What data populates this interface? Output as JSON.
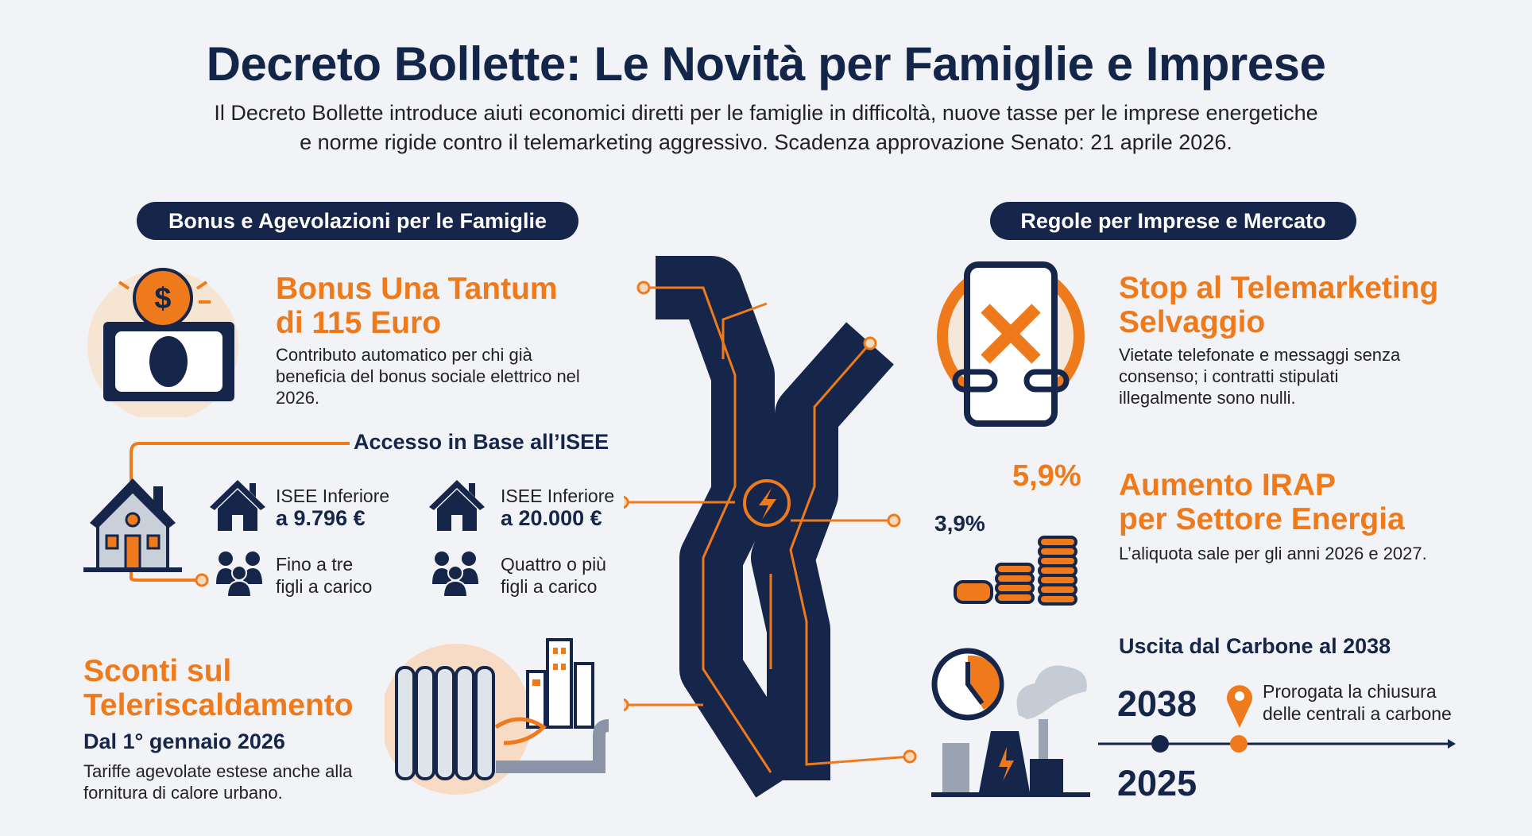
{
  "header": {
    "title": "Decreto Bollette: Le Novità per Famiglie e Imprese",
    "subtitle_line1": "Il Decreto Bollette introduce aiuti economici diretti per le famiglie in difficoltà, nuove tasse per le imprese energetiche",
    "subtitle_line2": "e norme rigide contro il telemarketing aggressivo. Scadenza approvazione Senato: 21 aprile 2026."
  },
  "families": {
    "section_label": "Bonus e Agevolazioni per le Famiglie",
    "bonus": {
      "title_line1": "Bonus Una Tantum",
      "title_line2": "di 115 Euro",
      "desc_line1": "Contributo automatico per chi già",
      "desc_line2": "beneficia del bonus sociale elettrico nel",
      "desc_line3": "2026.",
      "icon": "cash-coin-icon"
    },
    "isee": {
      "title": "Accesso in Base all’ISEE",
      "items": [
        {
          "line1": "ISEE Inferiore",
          "line2": "a 9.796 €",
          "icon": "house-icon"
        },
        {
          "line1": "ISEE Inferiore",
          "line2": "a 20.000 €",
          "icon": "house-icon"
        },
        {
          "line1": "Fino a tre",
          "line2": "figli a carico",
          "icon": "family-icon"
        },
        {
          "line1": "Quattro o più",
          "line2": "figli a carico",
          "icon": "family-icon"
        }
      ]
    },
    "heating": {
      "title_line1": "Sconti sul",
      "title_line2": "Teleriscaldamento",
      "date": "Dal 1° gennaio 2026",
      "desc_line1": "Tariffe agevolate estese anche alla",
      "desc_line2": "fornitura di calore urbano.",
      "icon": "radiator-icon"
    }
  },
  "business": {
    "section_label": "Regole per Imprese e Mercato",
    "telemarketing": {
      "title_line1": "Stop al Telemarketing",
      "title_line2": "Selvaggio",
      "desc_line1": "Vietate telefonate e messaggi senza",
      "desc_line2": "consenso; i contratti stipulati",
      "desc_line3": "illegalmente sono nulli.",
      "icon": "phone-blocked-icon"
    },
    "irap": {
      "old_rate": "3,9%",
      "new_rate": "5,9%",
      "title_line1": "Aumento IRAP",
      "title_line2": "per Settore Energia",
      "desc": "L’aliquota sale per gli anni 2026 e 2027.",
      "icon": "coin-stacks-icon"
    },
    "coal": {
      "title": "Uscita dal Carbone al 2038",
      "year_new": "2038",
      "year_old": "2025",
      "note_line1": "Prorogata la chiusura",
      "note_line2": "delle centrali a carbone",
      "icon": "power-plant-clock-icon"
    }
  },
  "colors": {
    "navy": "#16264a",
    "orange": "#ee7a1c",
    "background": "#f1f3f6"
  }
}
